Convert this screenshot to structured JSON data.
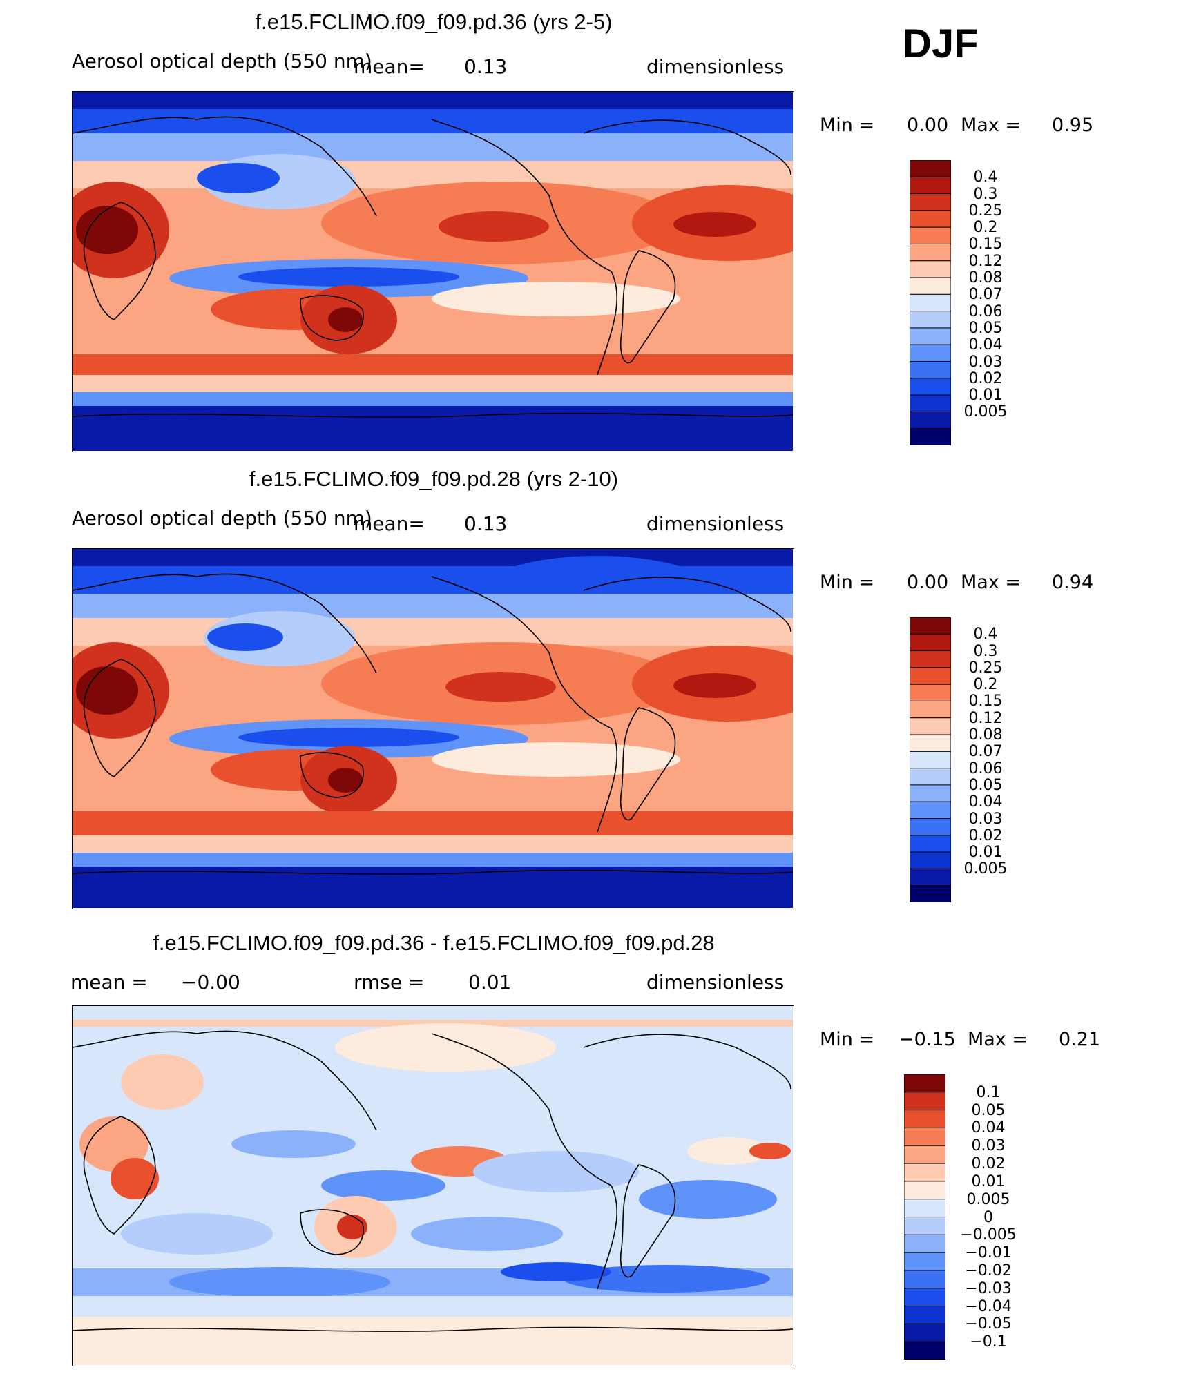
{
  "season": "DJF",
  "colors": {
    "aod": [
      "#00006b",
      "#0a1aa8",
      "#0c32d0",
      "#1a4fee",
      "#3b71f5",
      "#5f93fa",
      "#8cb1fb",
      "#b4cdfb",
      "#d8e6fb",
      "#fdebde",
      "#fccbb2",
      "#fca583",
      "#f67c53",
      "#e8502e",
      "#d0321d",
      "#b1180f",
      "#7e0707"
    ],
    "diff": [
      "#00006b",
      "#0a1aa8",
      "#0c32d0",
      "#1a4fee",
      "#3b71f5",
      "#5f93fa",
      "#8cb1fb",
      "#b4cdfb",
      "#d8e6fb",
      "#fdebde",
      "#fccbb2",
      "#fca583",
      "#f67c53",
      "#e8502e",
      "#d0321d",
      "#7e0707"
    ]
  },
  "panels": [
    {
      "title": "f.e15.FCLIMO.f09_f09.pd.36 (yrs 2-5)",
      "field": "Aerosol optical depth (550 nm)",
      "mean_label": "mean=",
      "mean_value": "0.13",
      "units": "dimensionless",
      "min_label": "Min =",
      "min_value": "0.00",
      "max_label": "Max =",
      "max_value": "0.95",
      "levels": [
        "0.4",
        "0.3",
        "0.25",
        "0.2",
        "0.15",
        "0.12",
        "0.08",
        "0.07",
        "0.06",
        "0.05",
        "0.04",
        "0.03",
        "0.02",
        "0.01",
        "0.005"
      ]
    },
    {
      "title": "f.e15.FCLIMO.f09_f09.pd.28 (yrs 2-10)",
      "field": "Aerosol optical depth (550 nm)",
      "mean_label": "mean=",
      "mean_value": "0.13",
      "units": "dimensionless",
      "min_label": "Min =",
      "min_value": "0.00",
      "max_label": "Max =",
      "max_value": "0.94",
      "levels": [
        "0.4",
        "0.3",
        "0.25",
        "0.2",
        "0.15",
        "0.12",
        "0.08",
        "0.07",
        "0.06",
        "0.05",
        "0.04",
        "0.03",
        "0.02",
        "0.01",
        "0.005"
      ]
    },
    {
      "title": "f.e15.FCLIMO.f09_f09.pd.36 - f.e15.FCLIMO.f09_f09.pd.28",
      "mean_label": "mean =",
      "mean_value": "−0.00",
      "rmse_label": "rmse =",
      "rmse_value": "0.01",
      "units": "dimensionless",
      "min_label": "Min =",
      "min_value": "−0.15",
      "max_label": "Max =",
      "max_value": "0.21",
      "levels": [
        "0.1",
        "0.05",
        "0.04",
        "0.03",
        "0.02",
        "0.01",
        "0.005",
        "0",
        "−0.005",
        "−0.01",
        "−0.02",
        "−0.03",
        "−0.04",
        "−0.05",
        "−0.1"
      ]
    }
  ]
}
